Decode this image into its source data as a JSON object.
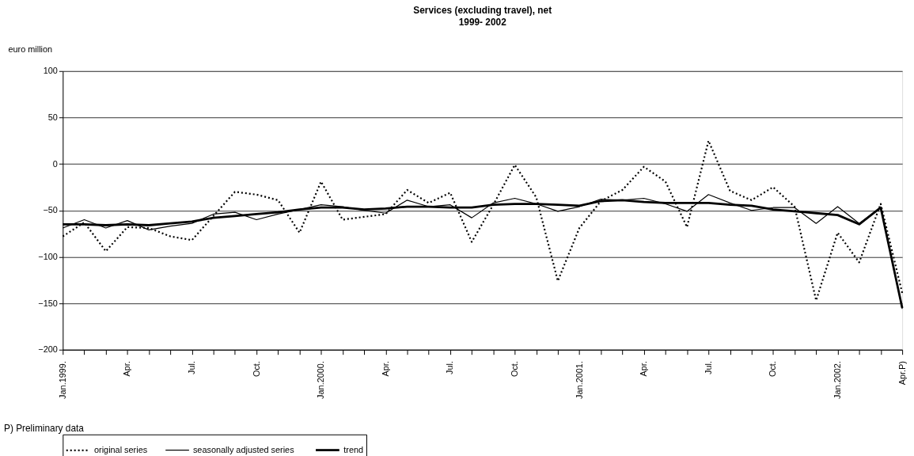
{
  "chart_data": {
    "type": "line",
    "title": "Services (excluding travel), net",
    "subtitle": "1999- 2002",
    "ylabel": "euro million",
    "categories": [
      "Jan.1999.",
      null,
      null,
      "Apr.",
      null,
      null,
      "Jul.",
      null,
      null,
      "Oct.",
      null,
      null,
      "Jan.2000.",
      null,
      null,
      "Apr.",
      null,
      null,
      "Jul.",
      null,
      null,
      "Oct.",
      null,
      null,
      "Jan.2001.",
      null,
      null,
      "Apr.",
      null,
      null,
      "Jul.",
      null,
      null,
      "Oct.",
      null,
      null,
      "Jan.2002.",
      null,
      null,
      "Apr.P)"
    ],
    "series": [
      {
        "name": "original series",
        "color": "#000000",
        "line_style": "dotted",
        "values": [
          -78,
          -63,
          -94,
          -68,
          -69,
          -78,
          -82,
          -56,
          -30,
          -33,
          -39,
          -74,
          -19,
          -60,
          -57,
          -54,
          -28,
          -42,
          -31,
          -84,
          -44,
          -1,
          -36,
          -126,
          -69,
          -40,
          -28,
          -3,
          -19,
          -68,
          25,
          -29,
          -39,
          -25,
          -46,
          -147,
          -74,
          -106,
          -43,
          -139
        ]
      },
      {
        "name": "seasonally adjusted series",
        "color": "#000000",
        "line_style": "solid",
        "values": [
          -69,
          -60,
          -69,
          -61,
          -71,
          -67,
          -64,
          -54,
          -52,
          -60,
          -54,
          -49,
          -44,
          -46,
          -50,
          -53,
          -39,
          -46,
          -44,
          -58,
          -42,
          -37,
          -43,
          -51,
          -46,
          -38,
          -39,
          -37,
          -43,
          -51,
          -33,
          -42,
          -50,
          -47,
          -47,
          -64,
          -46,
          -64,
          -47,
          -156
        ]
      },
      {
        "name": "trend",
        "color": "#000000",
        "line_style": "solid",
        "values": [
          -65,
          -65,
          -66,
          -65,
          -66,
          -64,
          -62,
          -58,
          -56,
          -54,
          -52,
          -49,
          -47,
          -47,
          -49,
          -48,
          -46,
          -46,
          -47,
          -47,
          -44,
          -43,
          -43,
          -44,
          -45,
          -40,
          -39,
          -41,
          -42,
          -42,
          -42,
          -44,
          -45,
          -49,
          -51,
          -53,
          -55,
          -65,
          -47,
          -155
        ]
      }
    ],
    "ylim": [
      -200,
      100
    ],
    "yticks": [
      -200,
      -150,
      -100,
      -50,
      0,
      50,
      100
    ],
    "grid": "y",
    "legend": "bottom",
    "annotations": [
      "P) Preliminary data"
    ]
  }
}
